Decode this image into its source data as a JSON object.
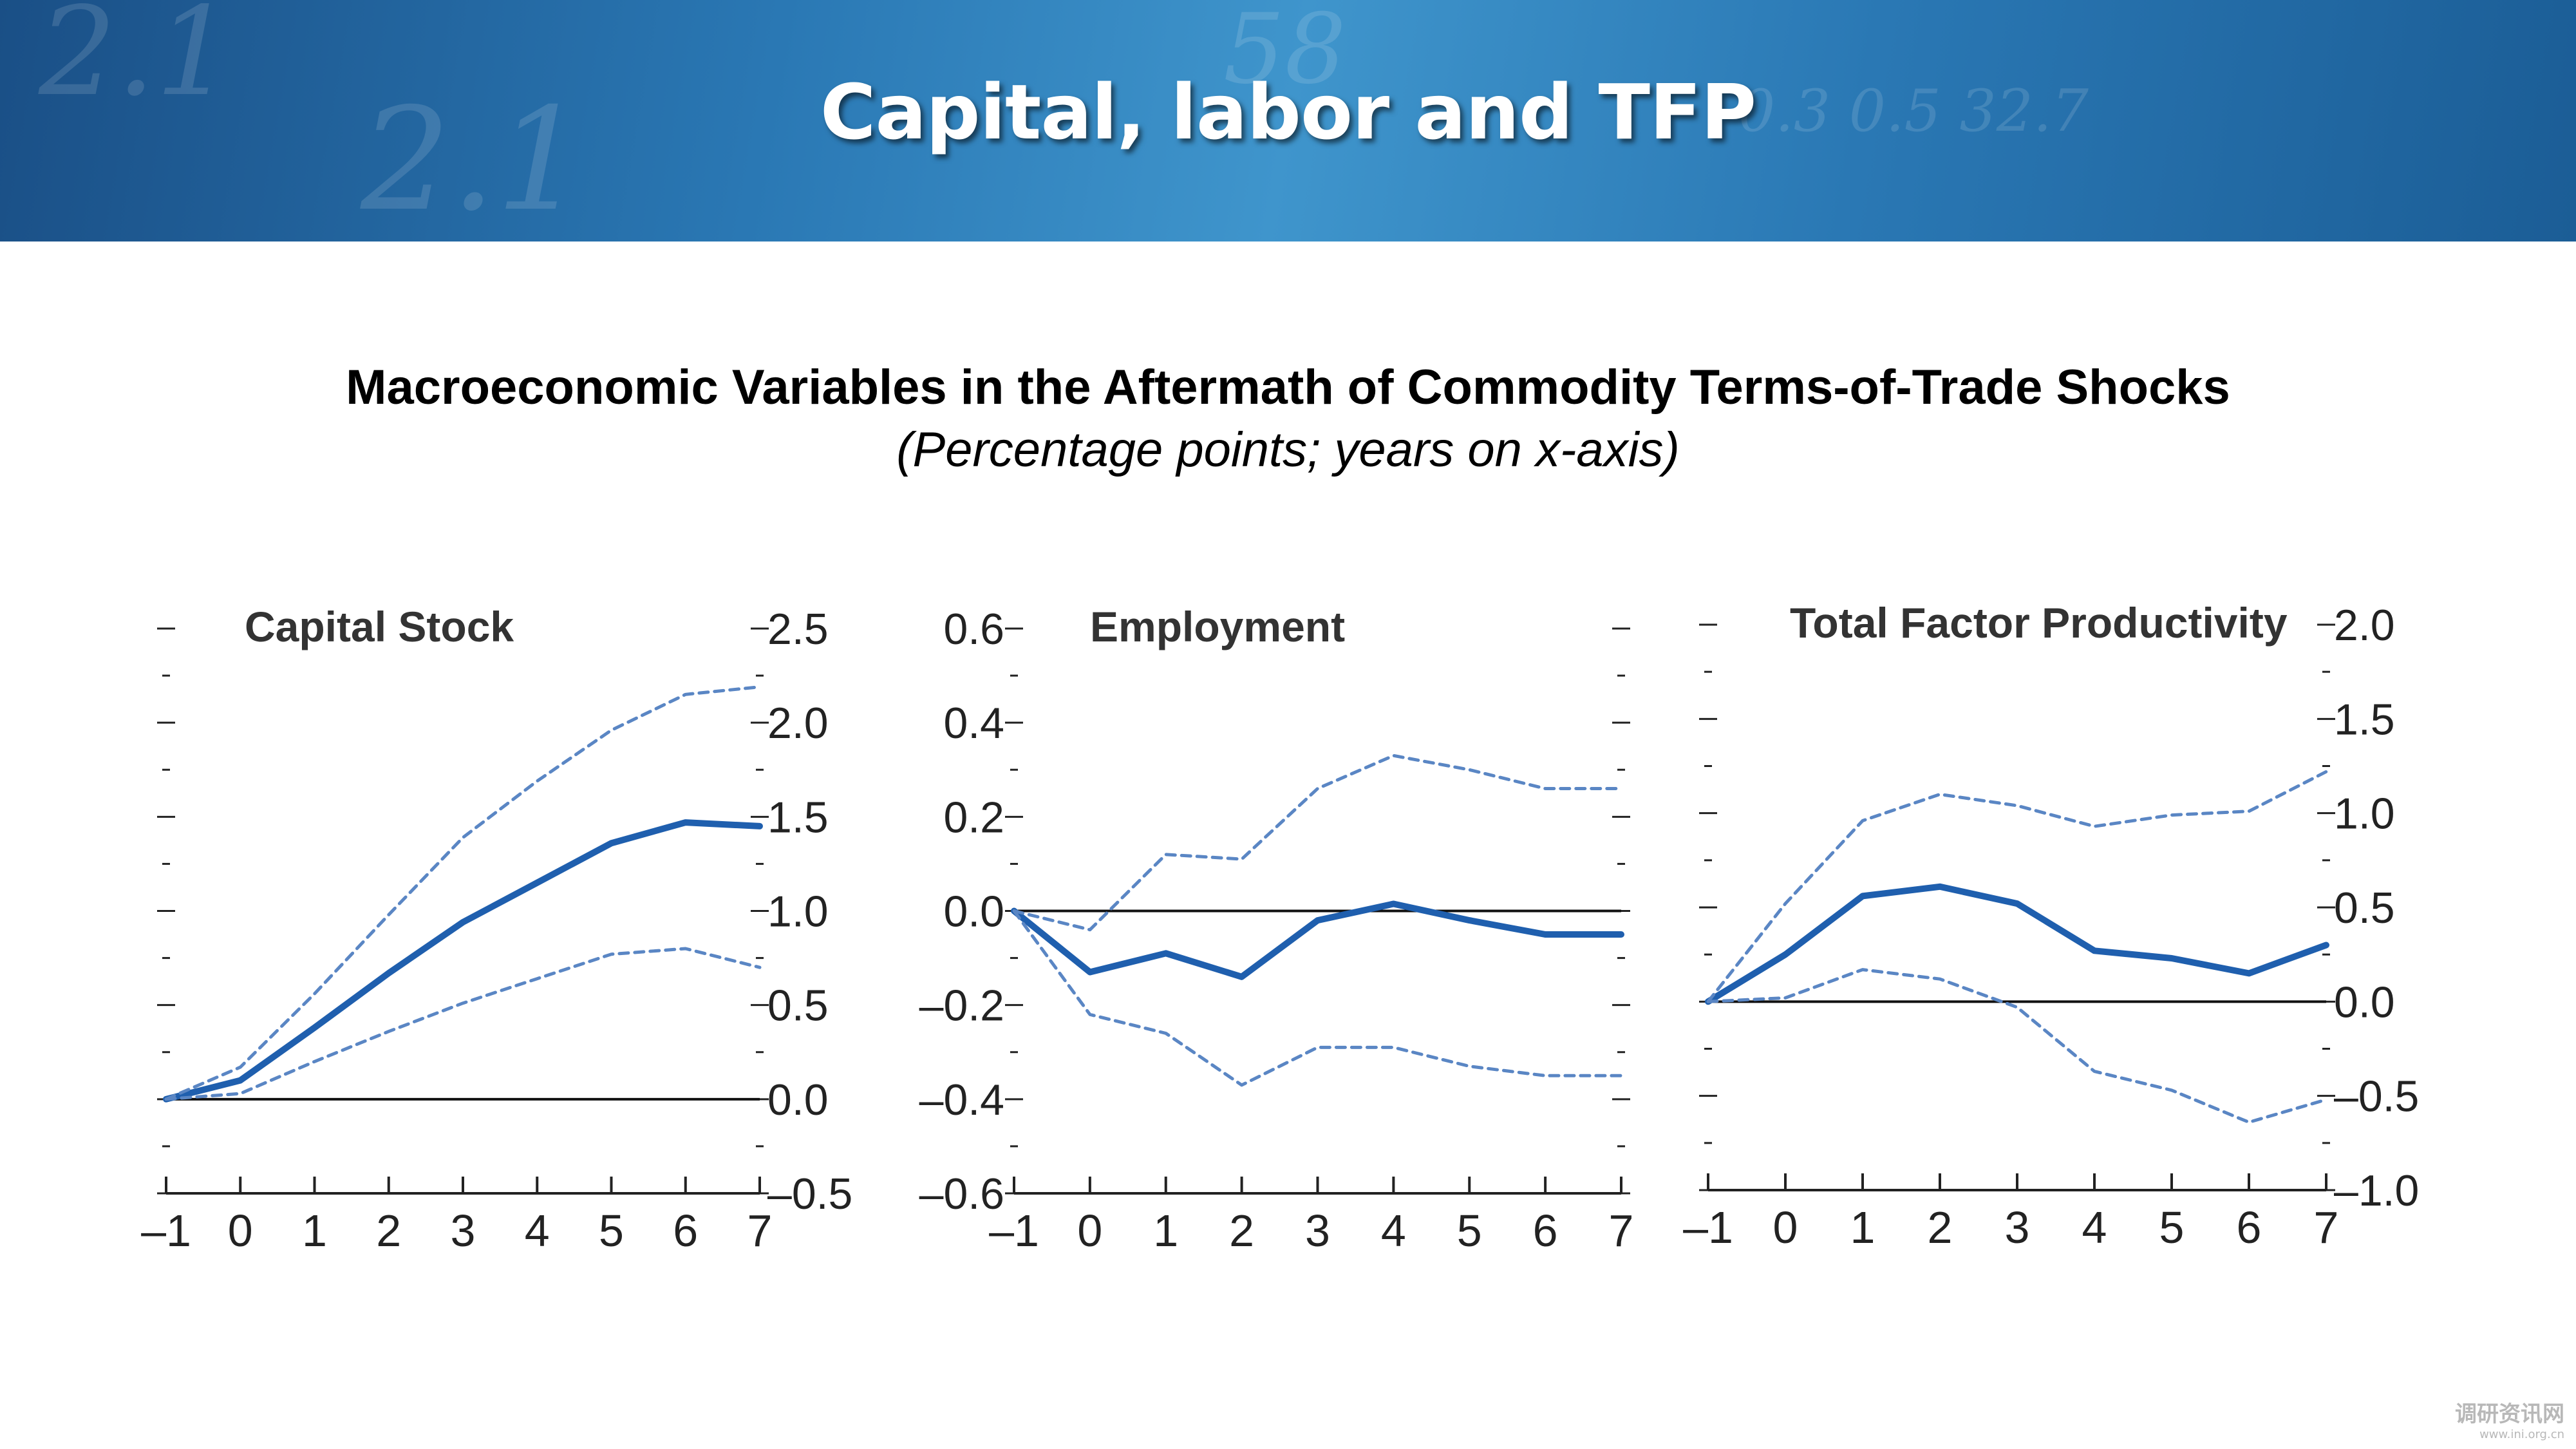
{
  "slide": {
    "title": "Capital, labor and TFP"
  },
  "figure": {
    "title": "Macroeconomic Variables in the Aftermath of Commodity Terms-of-Trade Shocks",
    "subtitle": "(Percentage points; years on x-axis)"
  },
  "watermark": {
    "line1": "调研资讯网",
    "line2": "www.ini.org.cn"
  },
  "colors": {
    "estimate": "#1f5fae",
    "band": "#5a86c4",
    "banner": "#2a78b4"
  },
  "chart_data": [
    {
      "type": "line",
      "title": "Capital Stock",
      "x": [
        -1,
        0,
        1,
        2,
        3,
        4,
        5,
        6,
        7
      ],
      "xticks": [
        "–1",
        "0",
        "1",
        "2",
        "3",
        "4",
        "5",
        "6",
        "7"
      ],
      "ylim": [
        -0.5,
        2.5
      ],
      "yticks": [
        "–0.5",
        "0.0",
        "0.5",
        "1.0",
        "1.5",
        "2.0",
        "2.5"
      ],
      "axis_side": "right",
      "series": [
        {
          "role": "estimate",
          "values": [
            0.0,
            0.1,
            0.38,
            0.67,
            0.94,
            1.15,
            1.36,
            1.47,
            1.45
          ]
        },
        {
          "role": "upper",
          "values": [
            0.0,
            0.17,
            0.56,
            0.98,
            1.39,
            1.69,
            1.96,
            2.15,
            2.19
          ]
        },
        {
          "role": "lower",
          "values": [
            0.0,
            0.03,
            0.2,
            0.36,
            0.51,
            0.64,
            0.77,
            0.8,
            0.7
          ]
        }
      ]
    },
    {
      "type": "line",
      "title": "Employment",
      "x": [
        -1,
        0,
        1,
        2,
        3,
        4,
        5,
        6,
        7
      ],
      "xticks": [
        "–1",
        "0",
        "1",
        "2",
        "3",
        "4",
        "5",
        "6",
        "7"
      ],
      "ylim": [
        -0.6,
        0.6
      ],
      "yticks": [
        "–0.6",
        "–0.4",
        "–0.2",
        "0.0",
        "0.2",
        "0.4",
        "0.6"
      ],
      "axis_side": "left",
      "series": [
        {
          "role": "estimate",
          "values": [
            0.0,
            -0.13,
            -0.09,
            -0.14,
            -0.02,
            0.015,
            -0.02,
            -0.05,
            -0.05
          ]
        },
        {
          "role": "upper",
          "values": [
            0.0,
            -0.04,
            0.12,
            0.11,
            0.26,
            0.33,
            0.3,
            0.26,
            0.26
          ]
        },
        {
          "role": "lower",
          "values": [
            0.0,
            -0.22,
            -0.26,
            -0.37,
            -0.29,
            -0.29,
            -0.33,
            -0.35,
            -0.35
          ]
        }
      ]
    },
    {
      "type": "line",
      "title": "Total Factor Productivity",
      "x": [
        -1,
        0,
        1,
        2,
        3,
        4,
        5,
        6,
        7
      ],
      "xticks": [
        "–1",
        "0",
        "1",
        "2",
        "3",
        "4",
        "5",
        "6",
        "7"
      ],
      "ylim": [
        -1.0,
        2.0
      ],
      "yticks": [
        "–1.0",
        "–0.5",
        "0.0",
        "0.5",
        "1.0",
        "1.5",
        "2.0"
      ],
      "axis_side": "right",
      "series": [
        {
          "role": "estimate",
          "values": [
            0.0,
            0.25,
            0.56,
            0.61,
            0.52,
            0.27,
            0.23,
            0.15,
            0.3
          ]
        },
        {
          "role": "upper",
          "values": [
            0.0,
            0.52,
            0.96,
            1.1,
            1.04,
            0.93,
            0.99,
            1.01,
            1.22
          ]
        },
        {
          "role": "lower",
          "values": [
            0.0,
            0.02,
            0.17,
            0.12,
            -0.03,
            -0.37,
            -0.47,
            -0.64,
            -0.52
          ]
        }
      ]
    }
  ]
}
